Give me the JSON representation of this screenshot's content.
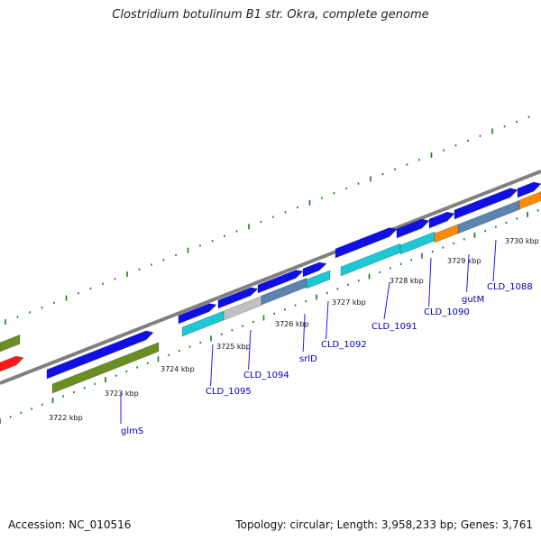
{
  "title": "Clostridium botulinum B1 str. Okra, complete genome",
  "footer": {
    "accession": "Accession: NC_010516",
    "summary": "Topology: circular; Length: 3,958,233 bp; Genes: 3,761"
  },
  "colors": {
    "cds_forward": "#1010e6",
    "olive": "#6b8e23",
    "cyan": "#1ec8d2",
    "gray": "#c0c0c0",
    "orange": "#ff8c00",
    "steel": "#5b84b1",
    "red": "#ff1a1a",
    "tick": "#1a7a1a",
    "label": "#0000b3"
  },
  "ticks": [
    {
      "label": "3722 kbp"
    },
    {
      "label": "3723 kbp"
    },
    {
      "label": "3724 kbp"
    },
    {
      "label": "3725 kbp"
    },
    {
      "label": "3726 kbp"
    },
    {
      "label": "3727 kbp"
    },
    {
      "label": "3728 kbp"
    },
    {
      "label": "3729 kbp"
    },
    {
      "label": "3730 kbp"
    }
  ],
  "genes": [
    {
      "label": "glmS"
    },
    {
      "label": "CLD_1095"
    },
    {
      "label": "CLD_1094"
    },
    {
      "label": "srlD"
    },
    {
      "label": "CLD_1092"
    },
    {
      "label": "CLD_1091"
    },
    {
      "label": "CLD_1090"
    },
    {
      "label": "gutM"
    },
    {
      "label": "CLD_1088"
    }
  ]
}
